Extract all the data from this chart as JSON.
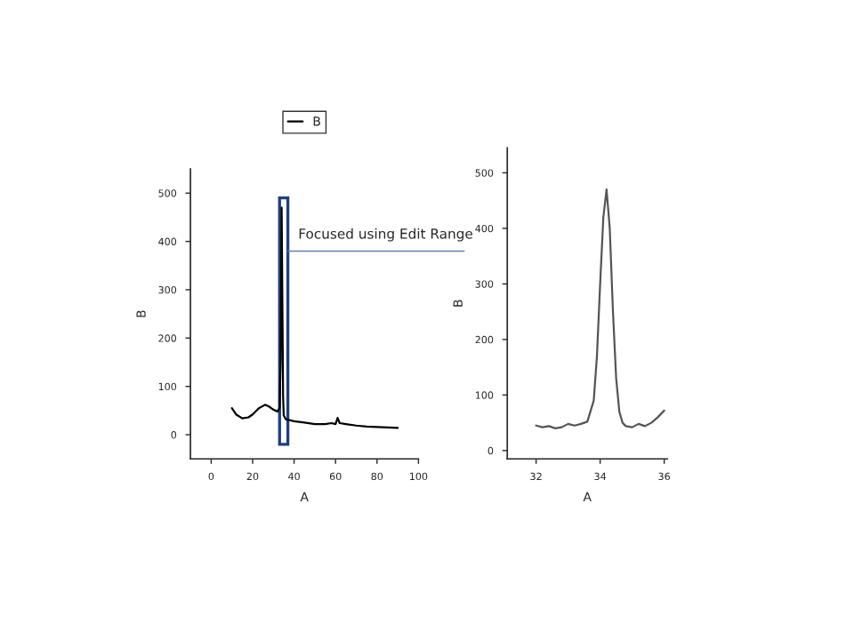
{
  "chart_data": [
    {
      "type": "line",
      "xlabel": "A",
      "ylabel": "B",
      "xlim": [
        -10,
        100
      ],
      "ylim": [
        -50,
        550
      ],
      "xticks": [
        0,
        20,
        40,
        60,
        80,
        100
      ],
      "yticks": [
        0,
        100,
        200,
        300,
        400,
        500
      ],
      "legend": "top",
      "grid": false,
      "marker": "none",
      "line_style": "solid",
      "annotations": [
        "Focused using Edit Range"
      ],
      "series": [
        {
          "name": "B",
          "color": "#000000",
          "x": [
            10,
            12,
            15,
            18,
            20,
            23,
            26,
            28,
            30,
            31,
            32,
            33,
            33.5,
            34,
            34.3,
            34.7,
            35,
            36,
            38,
            40,
            45,
            50,
            55,
            58,
            60,
            61,
            62,
            65,
            70,
            75,
            80,
            85,
            90
          ],
          "values": [
            55,
            42,
            34,
            36,
            42,
            55,
            62,
            58,
            52,
            50,
            48,
            55,
            150,
            470,
            300,
            80,
            40,
            32,
            30,
            28,
            25,
            22,
            22,
            24,
            22,
            35,
            24,
            22,
            19,
            17,
            16,
            15,
            14
          ]
        }
      ]
    },
    {
      "type": "line",
      "xlabel": "A",
      "ylabel": "B",
      "xlim": [
        31.1,
        36.1
      ],
      "ylim": [
        -15,
        545
      ],
      "xticks": [
        32,
        34,
        36
      ],
      "yticks": [
        0,
        100,
        200,
        300,
        400,
        500
      ],
      "legend": false,
      "grid": false,
      "marker": "none",
      "line_style": "solid",
      "series": [
        {
          "color": "#555555",
          "x": [
            32,
            32.2,
            32.4,
            32.6,
            32.8,
            33,
            33.2,
            33.4,
            33.6,
            33.8,
            33.9,
            34.0,
            34.1,
            34.2,
            34.3,
            34.4,
            34.5,
            34.6,
            34.7,
            34.8,
            35.0,
            35.2,
            35.4,
            35.6,
            35.8,
            36.0
          ],
          "values": [
            45,
            42,
            44,
            40,
            42,
            48,
            45,
            48,
            52,
            90,
            170,
            300,
            420,
            470,
            400,
            250,
            130,
            70,
            50,
            44,
            42,
            48,
            44,
            50,
            60,
            72
          ]
        }
      ]
    }
  ]
}
